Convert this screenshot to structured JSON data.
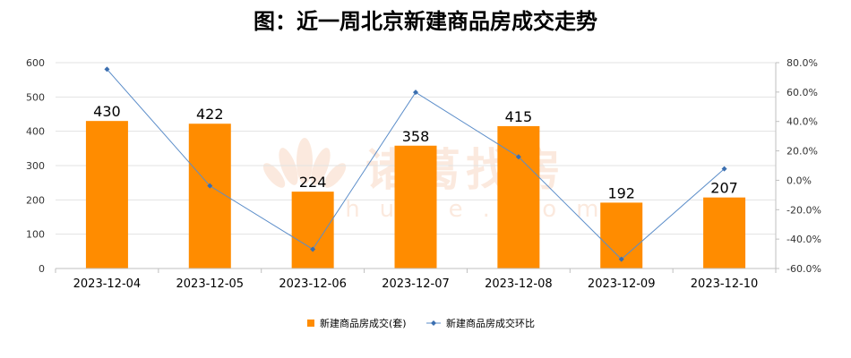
{
  "title": "图：近一周北京新建商品房成交走势",
  "watermark": {
    "cn": "诸葛找房",
    "en": "zhuge.com"
  },
  "colors": {
    "bar": "#FF8C00",
    "line": "#5B8DC9",
    "grid": "#E3E3E3",
    "axis": "#BFBFBF"
  },
  "chart_data": {
    "type": "bar",
    "categories": [
      "2023-12-04",
      "2023-12-05",
      "2023-12-06",
      "2023-12-07",
      "2023-12-08",
      "2023-12-09",
      "2023-12-10"
    ],
    "ylim": [
      0,
      600
    ],
    "yticks": [
      0,
      100,
      200,
      300,
      400,
      500,
      600
    ],
    "y2lim": [
      -60,
      80
    ],
    "y2ticks": [
      -60,
      -40,
      -20,
      0,
      20,
      40,
      60,
      80
    ],
    "y2tick_labels": [
      "-60.0%",
      "-40.0%",
      "-20.0%",
      "0.0%",
      "20.0%",
      "40.0%",
      "60.0%",
      "80.0%"
    ],
    "series": [
      {
        "name": "新建商品房成交(套)",
        "type": "bar",
        "axis": "left",
        "values": [
          430,
          422,
          224,
          358,
          415,
          192,
          207
        ],
        "labels": [
          "430",
          "422",
          "224",
          "358",
          "415",
          "192",
          "207"
        ]
      },
      {
        "name": "新建商品房成交环比",
        "type": "line",
        "axis": "right",
        "values": [
          75.5,
          -3.8,
          -46.9,
          59.8,
          15.9,
          -53.7,
          7.8
        ]
      }
    ],
    "legend": "bottom",
    "grid": true
  }
}
